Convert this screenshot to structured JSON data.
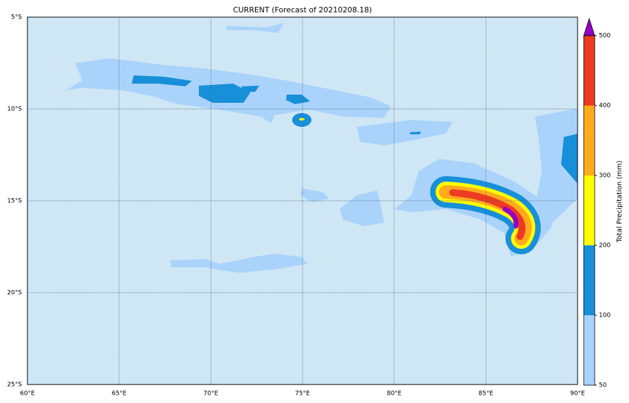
{
  "map": {
    "title": "CURRENT (Forecast of 20210208.18)",
    "xlim": [
      60,
      90
    ],
    "ylim": [
      -25,
      -5
    ],
    "xticks": [
      {
        "value": 60,
        "label": "60°E"
      },
      {
        "value": 65,
        "label": "65°E"
      },
      {
        "value": 70,
        "label": "70°E"
      },
      {
        "value": 75,
        "label": "75°E"
      },
      {
        "value": 80,
        "label": "80°E"
      },
      {
        "value": 85,
        "label": "85°E"
      },
      {
        "value": 90,
        "label": "90°E"
      }
    ],
    "yticks": [
      {
        "value": -5,
        "label": "5°S"
      },
      {
        "value": -10,
        "label": "10°S"
      },
      {
        "value": -15,
        "label": "15°S"
      },
      {
        "value": -20,
        "label": "20°S"
      },
      {
        "value": -25,
        "label": "25°S"
      }
    ],
    "grid": true,
    "colorbar": {
      "label": "Total Precipitation (mm)",
      "levels": [
        50,
        100,
        200,
        300,
        400,
        500
      ],
      "colors": [
        "#a9d3fb",
        "#188fd9",
        "#ffff00",
        "#ffab1c",
        "#ee3a22"
      ],
      "extend_color": "#9400c8"
    }
  }
}
